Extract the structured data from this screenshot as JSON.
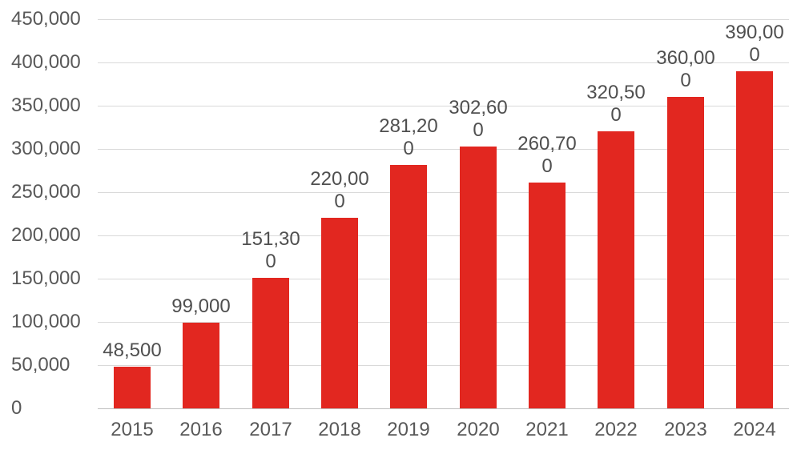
{
  "chart_data": {
    "type": "bar",
    "title": "",
    "xlabel": "",
    "ylabel": "",
    "categories": [
      "2015",
      "2016",
      "2017",
      "2018",
      "2019",
      "2020",
      "2021",
      "2022",
      "2023",
      "2024"
    ],
    "values": [
      48500,
      99000,
      151300,
      220000,
      281200,
      302600,
      260700,
      320500,
      360000,
      390000
    ],
    "data_label_lines": [
      [
        "48,500"
      ],
      [
        "99,000"
      ],
      [
        "151,30",
        "0"
      ],
      [
        "220,00",
        "0"
      ],
      [
        "281,20",
        "0"
      ],
      [
        "302,60",
        "0"
      ],
      [
        "260,70",
        "0"
      ],
      [
        "320,50",
        "0"
      ],
      [
        "360,00",
        "0"
      ],
      [
        "390,00",
        "0"
      ]
    ],
    "ylim": [
      0,
      450000
    ],
    "ytick_step": 50000,
    "ytick_labels": [
      "0",
      "50,000",
      "100,000",
      "150,000",
      "200,000",
      "250,000",
      "300,000",
      "350,000",
      "400,000",
      "450,000"
    ],
    "grid": true,
    "legend": false
  },
  "colors": {
    "bar": "#E22720",
    "gridline": "#D9D9D9",
    "zero_line": "#BFBFBF",
    "axis_label": "#595959",
    "data_label": "#4F4F4F",
    "background": "#FFFFFF"
  }
}
